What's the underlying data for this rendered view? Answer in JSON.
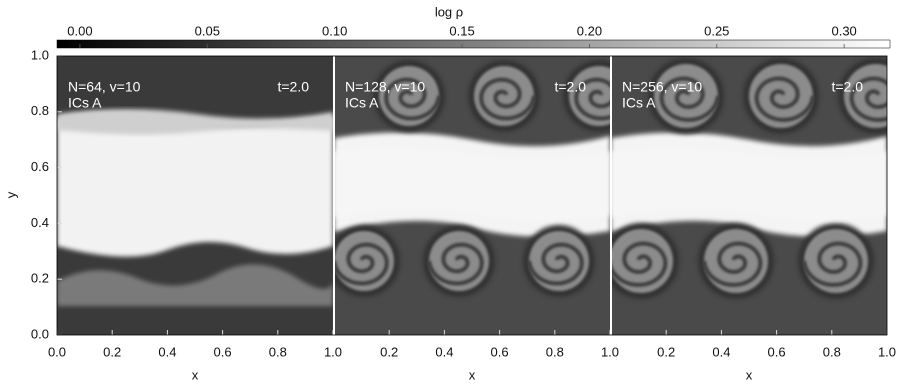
{
  "chart_data": {
    "type": "image",
    "colorbar": {
      "label": "log ρ",
      "lim": [
        -0.009,
        0.318
      ],
      "ticks": [
        {
          "value": 0,
          "label": "0.00"
        },
        0.05,
        {
          "value": 0.1,
          "label": "0.10"
        },
        0.15,
        {
          "value": 0.2,
          "label": "0.20"
        },
        0.25,
        {
          "value": 0.3,
          "label": "0.30"
        }
      ]
    },
    "ylabel": "y",
    "ylim": [
      0,
      1
    ],
    "yticks": [
      {
        "value": 0,
        "label": "0.0"
      },
      0.2,
      0.4,
      0.6,
      0.8,
      {
        "value": 1,
        "label": "1.0"
      }
    ],
    "xlim": [
      0,
      1
    ],
    "panels": [
      {
        "label": "N=64, v=10",
        "sublabel": "ICs A",
        "time": "t=2.0",
        "xlabel": "x",
        "xticks": [
          {
            "value": 0,
            "label": "0.0"
          },
          0.2,
          0.4,
          0.6,
          0.8,
          {
            "value": 1,
            "label": "1.0"
          }
        ]
      },
      {
        "label": "N=128, v=10",
        "sublabel": "ICs A",
        "time": "t=2.0",
        "xlabel": "x",
        "xticks": [
          0.2,
          0.4,
          0.6,
          0.8,
          {
            "value": 1,
            "label": "1.0"
          }
        ]
      },
      {
        "label": "N=256, v=10",
        "sublabel": "ICs A",
        "time": "t=2.0",
        "xlabel": "x",
        "xticks": [
          0.2,
          0.4,
          0.6,
          0.8,
          {
            "value": 1,
            "label": "1.0"
          }
        ]
      }
    ]
  }
}
